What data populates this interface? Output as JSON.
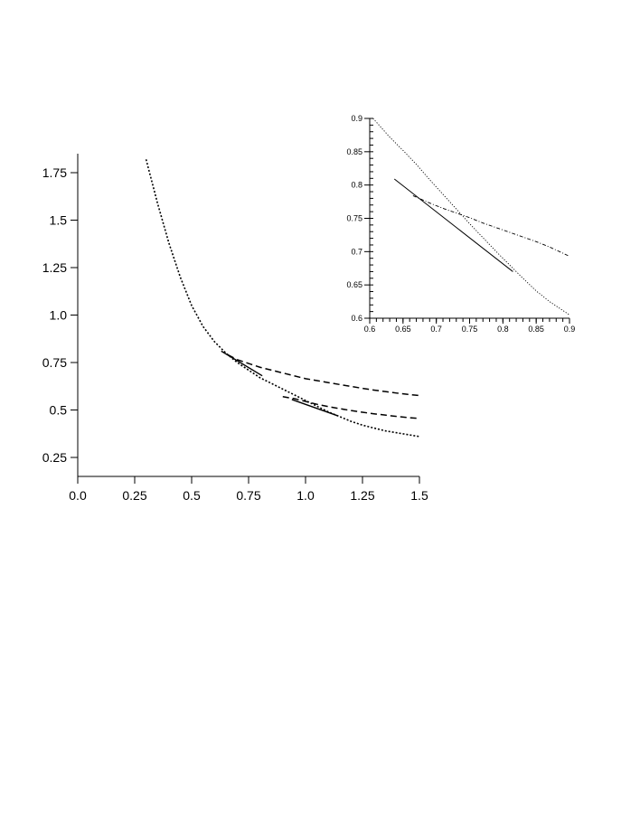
{
  "chart_data": [
    {
      "type": "line",
      "title": "",
      "xlabel": "",
      "ylabel": "",
      "xlim": [
        0.0,
        1.5
      ],
      "ylim": [
        0.15,
        1.85
      ],
      "x_ticks": [
        0.0,
        0.25,
        0.5,
        0.75,
        1.0,
        1.25,
        1.5
      ],
      "x_tick_labels": [
        "0.0",
        "0.25",
        "0.5",
        "0.75",
        "1.0",
        "1.25",
        "1.5"
      ],
      "y_ticks": [
        0.25,
        0.5,
        0.75,
        1.0,
        1.25,
        1.5,
        1.75
      ],
      "y_tick_labels": [
        "0.25",
        "0.5",
        "0.75",
        "1.0",
        "1.25",
        "1.5",
        "1.75"
      ],
      "grid": false,
      "series": [
        {
          "style": "dotted",
          "x": [
            0.3,
            0.35,
            0.4,
            0.45,
            0.5,
            0.55,
            0.6,
            0.65,
            0.7,
            0.75,
            0.8,
            0.85,
            0.9,
            0.95,
            1.0,
            1.05,
            1.1,
            1.15,
            1.2,
            1.25,
            1.3,
            1.35,
            1.4,
            1.45,
            1.5
          ],
          "y": [
            1.82,
            1.59,
            1.38,
            1.2,
            1.05,
            0.94,
            0.86,
            0.8,
            0.75,
            0.71,
            0.67,
            0.64,
            0.61,
            0.58,
            0.55,
            0.52,
            0.49,
            0.465,
            0.44,
            0.42,
            0.405,
            0.39,
            0.38,
            0.37,
            0.36
          ]
        },
        {
          "style": "dashed",
          "x": [
            0.66,
            0.7,
            0.75,
            0.8,
            0.85,
            0.9,
            0.95,
            1.0,
            1.05,
            1.1,
            1.15,
            1.2,
            1.25,
            1.3,
            1.35,
            1.4,
            1.45,
            1.5
          ],
          "y": [
            0.79,
            0.765,
            0.745,
            0.725,
            0.71,
            0.695,
            0.68,
            0.665,
            0.655,
            0.644,
            0.634,
            0.624,
            0.614,
            0.605,
            0.597,
            0.589,
            0.582,
            0.576
          ]
        },
        {
          "style": "dashed",
          "x": [
            0.9,
            0.95,
            1.0,
            1.05,
            1.1,
            1.15,
            1.2,
            1.25,
            1.3,
            1.35,
            1.4,
            1.45,
            1.5
          ],
          "y": [
            0.57,
            0.56,
            0.545,
            0.53,
            0.518,
            0.507,
            0.497,
            0.488,
            0.48,
            0.473,
            0.466,
            0.46,
            0.455
          ]
        },
        {
          "style": "solid",
          "x": [
            0.63,
            0.81
          ],
          "y": [
            0.81,
            0.68
          ]
        },
        {
          "style": "solid",
          "x": [
            0.94,
            1.14
          ],
          "y": [
            0.555,
            0.47
          ]
        }
      ]
    },
    {
      "type": "line",
      "title": "",
      "xlabel": "",
      "ylabel": "",
      "xlim": [
        0.6,
        0.9
      ],
      "ylim": [
        0.6,
        0.9
      ],
      "x_ticks": [
        0.6,
        0.65,
        0.7,
        0.75,
        0.8,
        0.85,
        0.9
      ],
      "x_tick_labels": [
        "0.6",
        "0.65",
        "0.7",
        "0.75",
        "0.8",
        "0.85",
        "0.9"
      ],
      "y_ticks": [
        0.6,
        0.65,
        0.7,
        0.75,
        0.8,
        0.85,
        0.9
      ],
      "y_tick_labels": [
        "0.6",
        "0.65",
        "0.7",
        "0.75",
        "0.8",
        "0.85",
        "0.9"
      ],
      "grid": false,
      "series": [
        {
          "style": "dotted",
          "x": [
            0.605,
            0.63,
            0.65,
            0.67,
            0.69,
            0.71,
            0.73,
            0.75,
            0.77,
            0.79,
            0.81,
            0.83,
            0.85,
            0.87,
            0.9
          ],
          "y": [
            0.9,
            0.872,
            0.852,
            0.831,
            0.808,
            0.786,
            0.764,
            0.742,
            0.721,
            0.7,
            0.68,
            0.66,
            0.641,
            0.625,
            0.605
          ]
        },
        {
          "style": "dashdot",
          "x": [
            0.665,
            0.69,
            0.71,
            0.73,
            0.75,
            0.77,
            0.79,
            0.81,
            0.83,
            0.85,
            0.87,
            0.9
          ],
          "y": [
            0.784,
            0.773,
            0.765,
            0.758,
            0.751,
            0.743,
            0.736,
            0.729,
            0.722,
            0.715,
            0.707,
            0.693
          ]
        },
        {
          "style": "solid",
          "x": [
            0.637,
            0.815
          ],
          "y": [
            0.809,
            0.67
          ]
        }
      ]
    }
  ]
}
